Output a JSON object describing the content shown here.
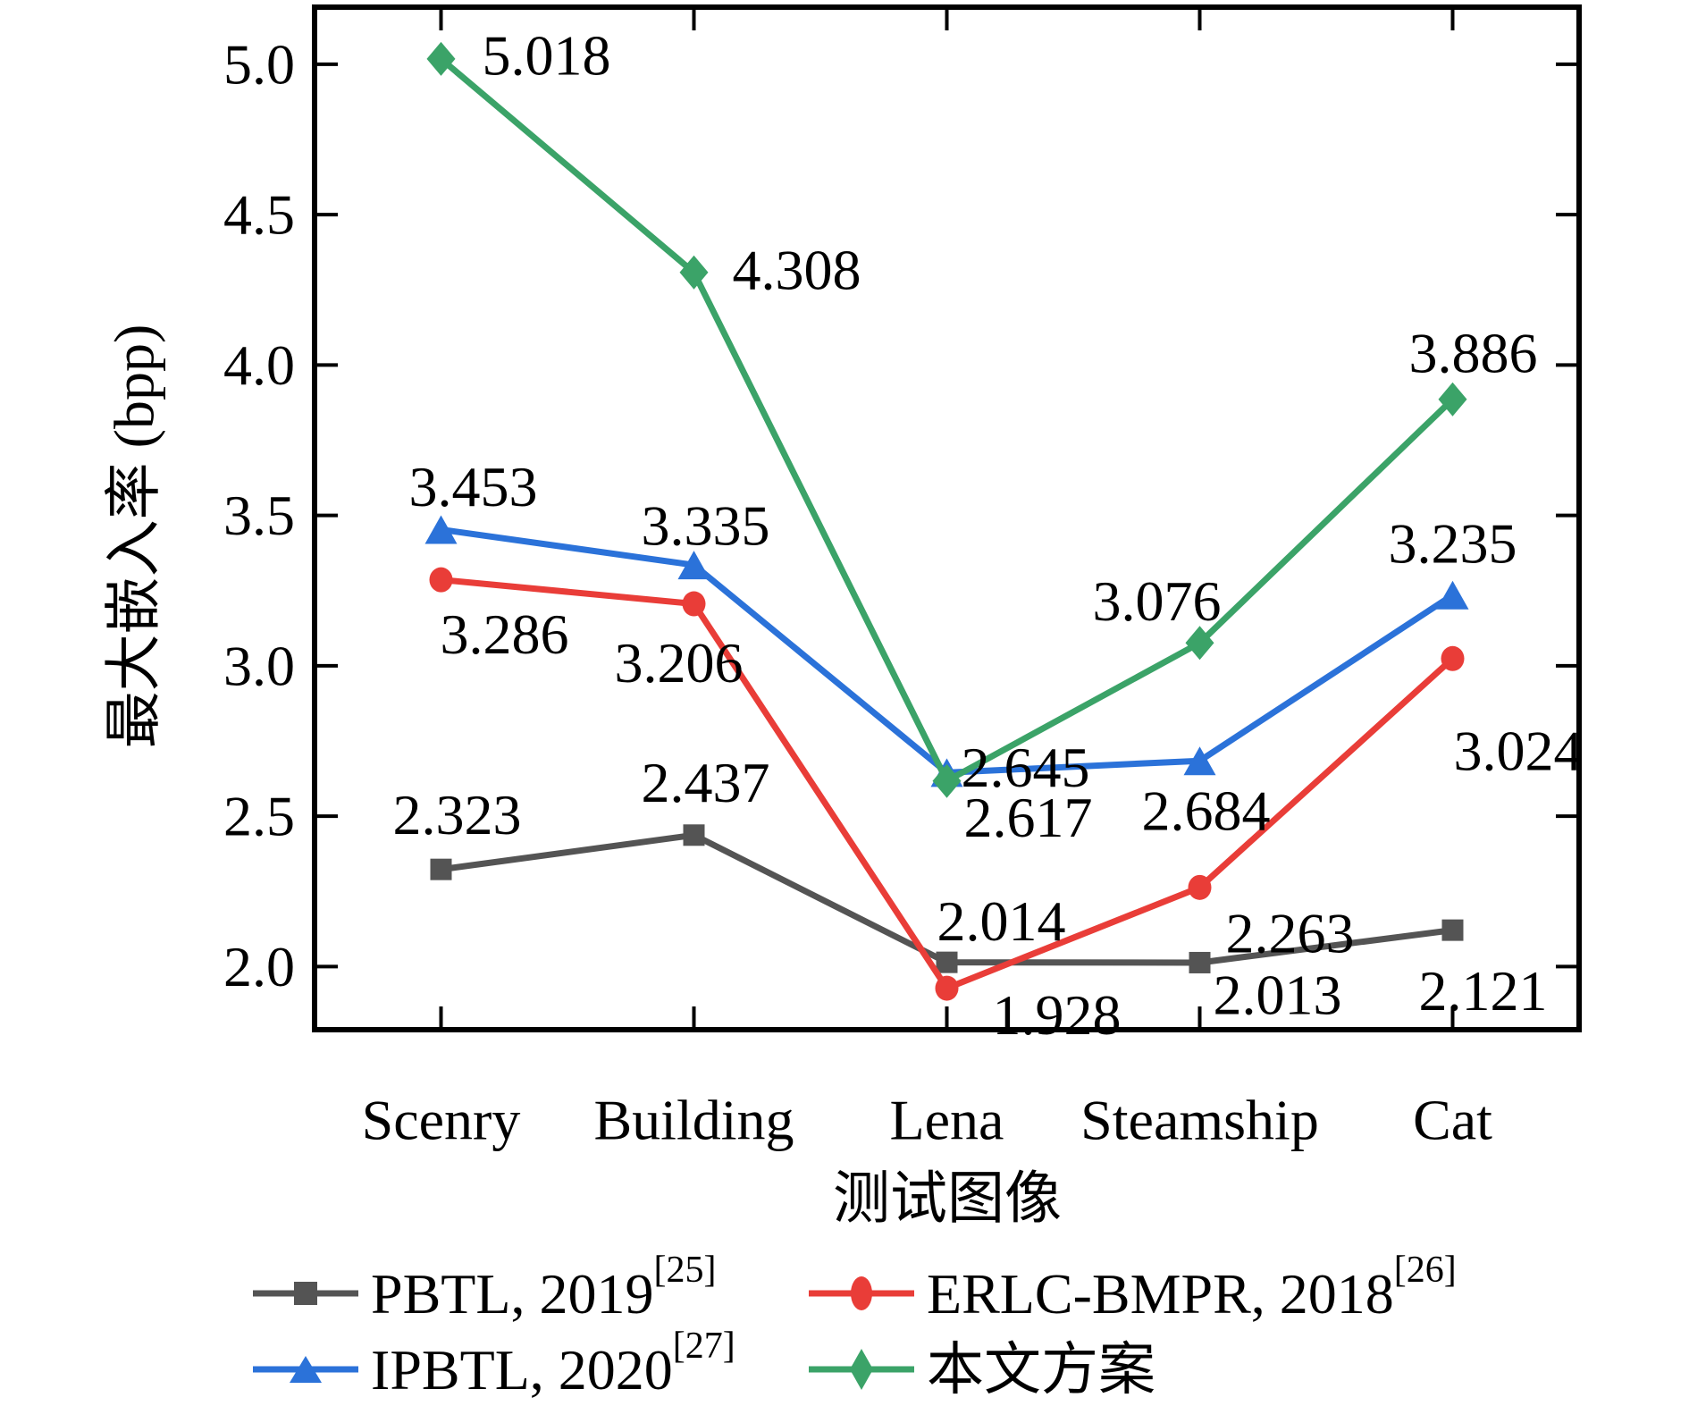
{
  "figure": {
    "background": "#ffffff",
    "frame_color": "#000000",
    "text_color": "#000000"
  },
  "chart_data": {
    "type": "line",
    "title": "",
    "xlabel": "测试图像",
    "ylabel": "最大嵌入率 (bpp)",
    "categories": [
      "Scenry",
      "Building",
      "Lena",
      "Steamship",
      "Cat"
    ],
    "x_axis": {
      "tick_positions": "category-centers",
      "ticks_inward": true
    },
    "y_axis": {
      "min": 1.79,
      "max": 5.19,
      "ticks": [
        2.0,
        2.5,
        3.0,
        3.5,
        4.0,
        4.5,
        5.0
      ],
      "tick_labels": [
        "2.0",
        "2.5",
        "3.0",
        "3.5",
        "4.0",
        "4.5",
        "5.0"
      ]
    },
    "grid": false,
    "legend_position": "below-chart, 2 columns x 2 rows",
    "series": [
      {
        "name": "PBTL, 2019",
        "ref_sup": "[25]",
        "color": "#545454",
        "marker": "square",
        "values": [
          2.323,
          2.437,
          2.014,
          2.013,
          2.121
        ],
        "value_labels": [
          "2.323",
          "2.437",
          "2.014",
          "2.013",
          "2.121"
        ],
        "label_offsets": [
          [
            18,
            -61
          ],
          [
            13,
            -59
          ],
          [
            61,
            -46
          ],
          [
            87,
            36
          ],
          [
            34,
            68
          ]
        ]
      },
      {
        "name": "ERLC-BMPR, 2018",
        "ref_sup": "[26]",
        "color": "#E93D38",
        "marker": "circle",
        "values": [
          3.286,
          3.206,
          1.928,
          2.263,
          3.024
        ],
        "value_labels": [
          "3.286",
          "3.206",
          "1.928",
          "2.263",
          "3.024"
        ],
        "label_offsets": [
          [
            71,
            61
          ],
          [
            -17,
            66
          ],
          [
            123,
            30
          ],
          [
            101,
            51
          ],
          [
            73,
            103
          ]
        ]
      },
      {
        "name": "IPBTL, 2020",
        "ref_sup": "[27]",
        "color": "#2B72D9",
        "marker": "triangle",
        "values": [
          3.453,
          3.335,
          2.645,
          2.684,
          3.235
        ],
        "value_labels": [
          "3.453",
          "3.335",
          "2.645",
          "2.684",
          "3.235"
        ],
        "label_offsets": [
          [
            36,
            -48
          ],
          [
            13,
            -44
          ],
          [
            88,
            -6
          ],
          [
            7,
            56
          ],
          [
            0,
            -58
          ]
        ]
      },
      {
        "name": "本文方案",
        "ref_sup": "",
        "color": "#3BA368",
        "marker": "diamond",
        "values": [
          5.018,
          4.308,
          2.617,
          3.076,
          3.886
        ],
        "value_labels": [
          "5.018",
          "4.308",
          "2.617",
          "3.076",
          "3.886"
        ],
        "label_offsets": [
          [
            118,
            -4
          ],
          [
            115,
            -3
          ],
          [
            91,
            41
          ],
          [
            -48,
            -47
          ],
          [
            23,
            -52
          ]
        ]
      }
    ]
  }
}
